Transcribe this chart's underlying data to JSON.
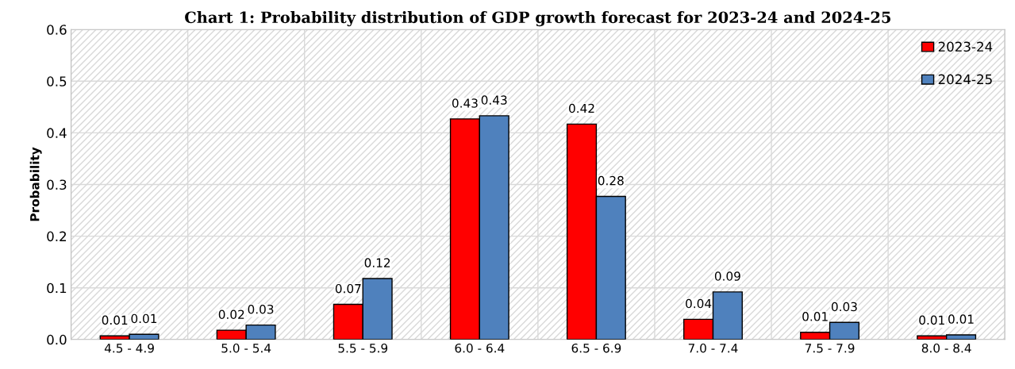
{
  "chart_data": {
    "type": "bar",
    "title": "Chart 1: Probability distribution of GDP growth forecast for 2023-24 and 2024-25",
    "ylabel": "Probability",
    "categories": [
      "4.5 - 4.9",
      "5.0 - 5.4",
      "5.5 - 5.9",
      "6.0 - 6.4",
      "6.5 - 6.9",
      "7.0 - 7.4",
      "7.5 - 7.9",
      "8.0 - 8.4"
    ],
    "series": [
      {
        "name": "2023-24",
        "color": "#ff0000",
        "values": [
          0.007,
          0.018,
          0.068,
          0.427,
          0.417,
          0.039,
          0.014,
          0.007
        ],
        "value_labels": [
          "0.01",
          "0.02",
          "0.07",
          "0.43",
          "0.42",
          "0.04",
          "0.01",
          "0.01"
        ]
      },
      {
        "name": "2024-25",
        "color": "#4f81bd",
        "values": [
          0.01,
          0.028,
          0.118,
          0.433,
          0.277,
          0.092,
          0.033,
          0.009
        ],
        "value_labels": [
          "0.01",
          "0.03",
          "0.12",
          "0.43",
          "0.28",
          "0.09",
          "0.03",
          "0.01"
        ]
      }
    ],
    "ylim": [
      0,
      0.6
    ],
    "yticks": [
      {
        "value": 0,
        "label": "0.0"
      },
      0.1,
      0.2,
      0.3,
      0.4,
      0.5,
      0.6
    ],
    "grid": true,
    "legend": "top right"
  }
}
